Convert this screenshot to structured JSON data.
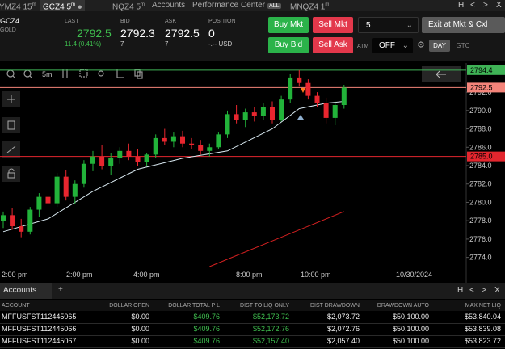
{
  "tabs": [
    {
      "label": "YMZ4 15",
      "sup": "m"
    },
    {
      "label": "GCZ4 5",
      "sup": "m"
    },
    {
      "label": "NQZ4 5",
      "sup": "m"
    },
    {
      "label": "Accounts"
    },
    {
      "label": "Performance Center",
      "badge": "ALL"
    },
    {
      "label": "MNQZ4 1",
      "sup": "m"
    }
  ],
  "window_buttons": [
    "H",
    "<",
    ">",
    "X"
  ],
  "quote": {
    "symbol": "GCZ4",
    "name": "GOLD",
    "last_label": "LAST",
    "last": "2792.5",
    "change": "11.4 (0.41%)",
    "bid_label": "BID",
    "bid": "2792.3",
    "bid_size": "7",
    "ask_label": "ASK",
    "ask": "2792.5",
    "ask_size": "7",
    "position_label": "POSITION",
    "position": "0",
    "position_value": "-.-- USD"
  },
  "order": {
    "buy_mkt": "Buy Mkt",
    "sell_mkt": "Sell Mkt",
    "buy_bid": "Buy Bid",
    "sell_ask": "Sell Ask",
    "quantity": "5",
    "exit": "Exit at Mkt & Cxl",
    "atm_label": "ATM",
    "atm": "OFF",
    "day": "DAY",
    "gtc": "GTC"
  },
  "toolbar": {
    "interval": "5m"
  },
  "chart_data": {
    "type": "candlestick",
    "candles": [
      [
        2778.0,
        2779.0,
        2777.2,
        2778.6
      ],
      [
        2778.6,
        2779.4,
        2777.0,
        2777.4
      ],
      [
        2777.4,
        2778.2,
        2776.2,
        2776.8
      ],
      [
        2776.8,
        2779.5,
        2776.5,
        2779.2
      ],
      [
        2779.2,
        2781.0,
        2778.4,
        2780.6
      ],
      [
        2780.6,
        2782.0,
        2779.6,
        2779.9
      ],
      [
        2779.9,
        2783.2,
        2779.5,
        2782.8
      ],
      [
        2782.8,
        2783.5,
        2780.2,
        2780.6
      ],
      [
        2780.6,
        2782.4,
        2779.8,
        2782.0
      ],
      [
        2782.0,
        2784.6,
        2781.6,
        2784.2
      ],
      [
        2784.2,
        2785.6,
        2783.4,
        2785.0
      ],
      [
        2785.0,
        2786.2,
        2783.6,
        2784.0
      ],
      [
        2784.0,
        2785.4,
        2783.0,
        2784.8
      ],
      [
        2784.8,
        2786.0,
        2784.2,
        2785.6
      ],
      [
        2785.6,
        2786.4,
        2784.6,
        2785.0
      ],
      [
        2785.0,
        2785.8,
        2784.0,
        2784.4
      ],
      [
        2784.4,
        2785.4,
        2784.0,
        2785.2
      ],
      [
        2785.2,
        2787.4,
        2784.8,
        2787.0
      ],
      [
        2787.0,
        2788.0,
        2786.2,
        2786.6
      ],
      [
        2786.6,
        2787.6,
        2786.0,
        2787.2
      ],
      [
        2787.2,
        2787.8,
        2786.0,
        2786.4
      ],
      [
        2786.4,
        2787.0,
        2785.8,
        2786.2
      ],
      [
        2786.2,
        2786.8,
        2785.2,
        2785.6
      ],
      [
        2785.6,
        2786.4,
        2785.0,
        2786.0
      ],
      [
        2786.0,
        2787.6,
        2785.8,
        2787.4
      ],
      [
        2787.4,
        2790.0,
        2787.0,
        2789.6
      ],
      [
        2789.6,
        2790.6,
        2788.6,
        2789.0
      ],
      [
        2789.0,
        2790.2,
        2788.2,
        2789.8
      ],
      [
        2789.8,
        2790.4,
        2788.8,
        2789.4
      ],
      [
        2789.4,
        2790.8,
        2789.0,
        2790.4
      ],
      [
        2790.4,
        2791.0,
        2788.6,
        2789.0
      ],
      [
        2789.0,
        2791.6,
        2788.8,
        2791.2
      ],
      [
        2791.2,
        2794.0,
        2790.8,
        2793.6
      ],
      [
        2793.6,
        2794.4,
        2792.6,
        2793.0
      ],
      [
        2793.0,
        2793.4,
        2791.2,
        2791.6
      ],
      [
        2791.6,
        2792.0,
        2790.4,
        2790.8
      ],
      [
        2790.8,
        2791.4,
        2788.6,
        2789.2
      ],
      [
        2789.2,
        2791.0,
        2788.4,
        2790.6
      ],
      [
        2790.6,
        2792.8,
        2790.2,
        2792.5
      ]
    ],
    "up_color": "#22b33a",
    "down_color": "#e8262f",
    "lines": [
      {
        "color": "#d8e8f0",
        "x": [
          0,
          5,
          10,
          15,
          20,
          25,
          30,
          33,
          36,
          38
        ],
        "values": [
          2776.8,
          2778.2,
          2781.2,
          2783.6,
          2784.8,
          2785.6,
          2788.0,
          2790.2,
          2790.8,
          2791.0
        ]
      },
      {
        "color": "#d42020",
        "x": [
          23,
          38
        ],
        "values": [
          2773.0,
          2779.0
        ]
      }
    ],
    "levels": [
      {
        "value": 2794.4,
        "color": "#3fb356"
      },
      {
        "value": 2792.5,
        "color": "#f4847a"
      },
      {
        "value": 2785,
        "label": "2785.0",
        "color": "#e3262e"
      }
    ],
    "ylim": [
      2773,
      2795
    ],
    "yticks": [
      {
        "value": 2792,
        "label": "2792.0"
      },
      {
        "value": 2790,
        "label": "2790.0"
      },
      {
        "value": 2788,
        "label": "2788.0"
      },
      {
        "value": 2786,
        "label": "2786.0"
      },
      {
        "value": 2784,
        "label": "2784.0"
      },
      {
        "value": 2782,
        "label": "2782.0"
      },
      {
        "value": 2780,
        "label": "2780.0"
      },
      {
        "value": 2778,
        "label": "2778.0"
      },
      {
        "value": 2776,
        "label": "2776.0"
      },
      {
        "value": 2774,
        "label": "2774.0"
      }
    ],
    "xlabels": [
      "2:00 pm",
      "2:00 pm",
      "4:00 pm",
      "8:00 pm",
      "10:00 pm",
      "10/30/2024"
    ]
  },
  "panel": {
    "tab": "Accounts",
    "add": "+",
    "buttons": [
      "H",
      "<",
      ">",
      "X"
    ]
  },
  "table": {
    "columns": [
      "ACCOUNT",
      "DOLLAR OPEN",
      "DOLLAR TOTAL P L",
      "DIST TO LIQ ONLY",
      "DIST DRAWDOWN",
      "DRAWDOWN AUTO",
      "MAX NET LIQ"
    ],
    "rows": [
      [
        "MFFUSFST112445065",
        "$0.00",
        "$409.76",
        "$52,173.72",
        "$2,073.72",
        "$50,100.00",
        "$53,840.04"
      ],
      [
        "MFFUSFST112445066",
        "$0.00",
        "$409.76",
        "$52,172.76",
        "$2,072.76",
        "$50,100.00",
        "$53,839.08"
      ],
      [
        "MFFUSFST112445067",
        "$0.00",
        "$409.76",
        "$52,157.40",
        "$2,057.40",
        "$50,100.00",
        "$53,823.72"
      ]
    ]
  }
}
